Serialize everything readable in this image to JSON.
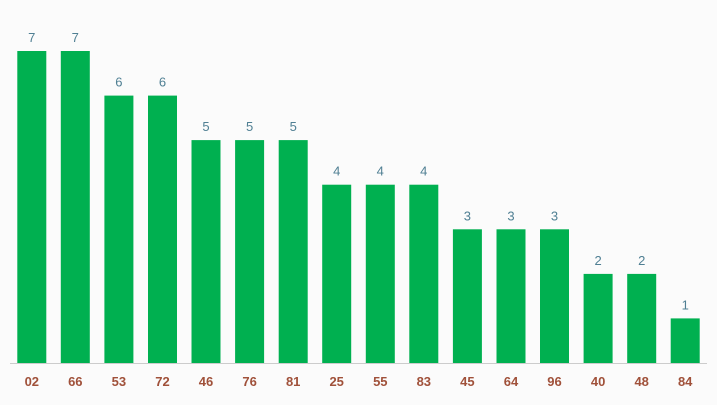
{
  "chart_data": {
    "type": "bar",
    "categories": [
      "02",
      "66",
      "53",
      "72",
      "46",
      "76",
      "81",
      "25",
      "55",
      "83",
      "45",
      "64",
      "96",
      "40",
      "48",
      "84"
    ],
    "values": [
      7,
      7,
      6,
      6,
      5,
      5,
      5,
      4,
      4,
      4,
      3,
      3,
      3,
      2,
      2,
      1
    ],
    "title": "",
    "xlabel": "",
    "ylabel": "",
    "ylim": [
      0,
      7
    ],
    "grid": false,
    "legend": "none",
    "data_labels": true,
    "colors": {
      "bar": "#00b050",
      "value_label": "#4f7f93",
      "tick_label": "#a0513a",
      "axis": "#cccccc",
      "background": "#fbfbfb"
    }
  }
}
